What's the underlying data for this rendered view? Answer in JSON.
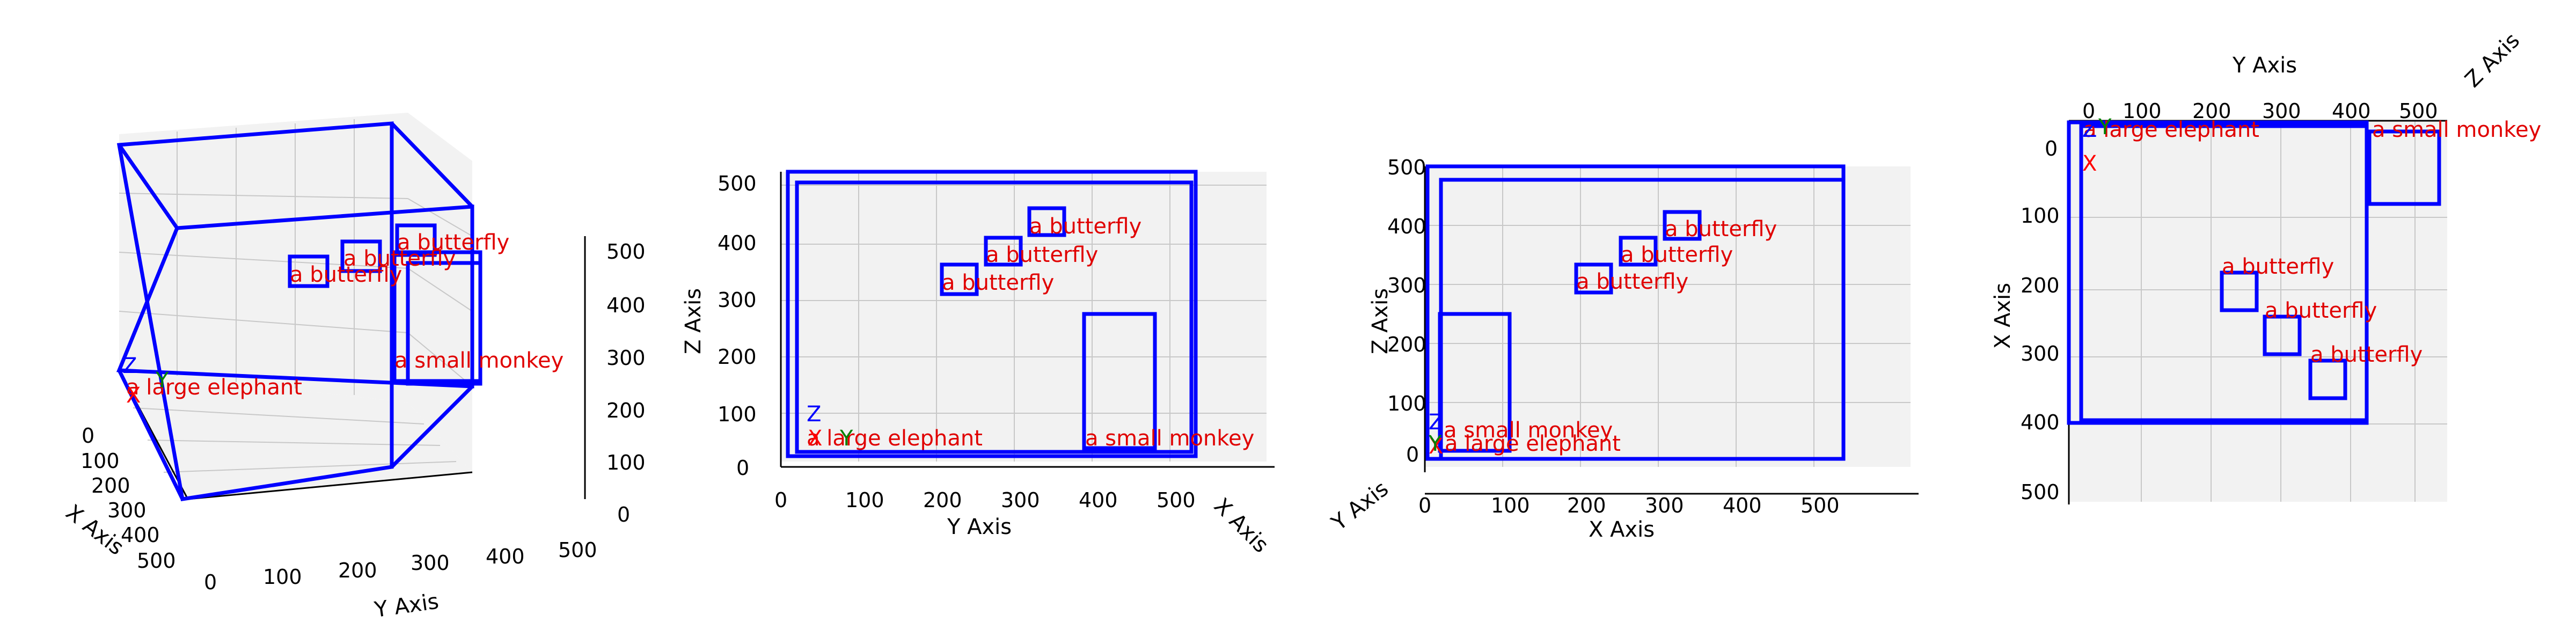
{
  "colors": {
    "box": "#0000ff",
    "label": "#e00000",
    "x_marker": "#ff0000",
    "y_marker": "#008000",
    "z_marker": "#0000ff"
  },
  "markers": {
    "x": "X",
    "y": "Y",
    "z": "Z"
  },
  "objects": {
    "elephant": "a large elephant",
    "monkey": "a small monkey",
    "butterfly1": "a butterfly",
    "butterfly2": "a butterfly",
    "butterfly3": "a butterfly"
  },
  "views": [
    {
      "name": "perspective",
      "xlabel": "X Axis",
      "ylabel": "Y Axis",
      "zlabel": "Z Axis",
      "xticks": [
        "0",
        "100",
        "200",
        "300",
        "400",
        "500"
      ],
      "yticks": [
        "0",
        "100",
        "200",
        "300",
        "400",
        "500"
      ],
      "zticks": [
        "0",
        "100",
        "200",
        "300",
        "400",
        "500"
      ]
    },
    {
      "name": "front-yz",
      "ylabel": "Y Axis",
      "zlabel": "Z Axis",
      "xlabel": "X Axis",
      "yticks": [
        "0",
        "100",
        "200",
        "300",
        "400",
        "500"
      ],
      "zticks": [
        "0",
        "100",
        "200",
        "300",
        "400",
        "500"
      ]
    },
    {
      "name": "side-xz",
      "xlabel": "X Axis",
      "zlabel": "Z Axis",
      "ylabel": "Y Axis",
      "xticks": [
        "0",
        "100",
        "200",
        "300",
        "400",
        "500"
      ],
      "zticks": [
        "0",
        "100",
        "200",
        "300",
        "400",
        "500"
      ]
    },
    {
      "name": "top-xy",
      "ylabel": "Y Axis",
      "xlabel": "X Axis",
      "zlabel": "Z Axis",
      "yticks": [
        "0",
        "100",
        "200",
        "300",
        "400",
        "500"
      ],
      "xticks": [
        "0",
        "100",
        "200",
        "300",
        "400",
        "500"
      ]
    }
  ]
}
